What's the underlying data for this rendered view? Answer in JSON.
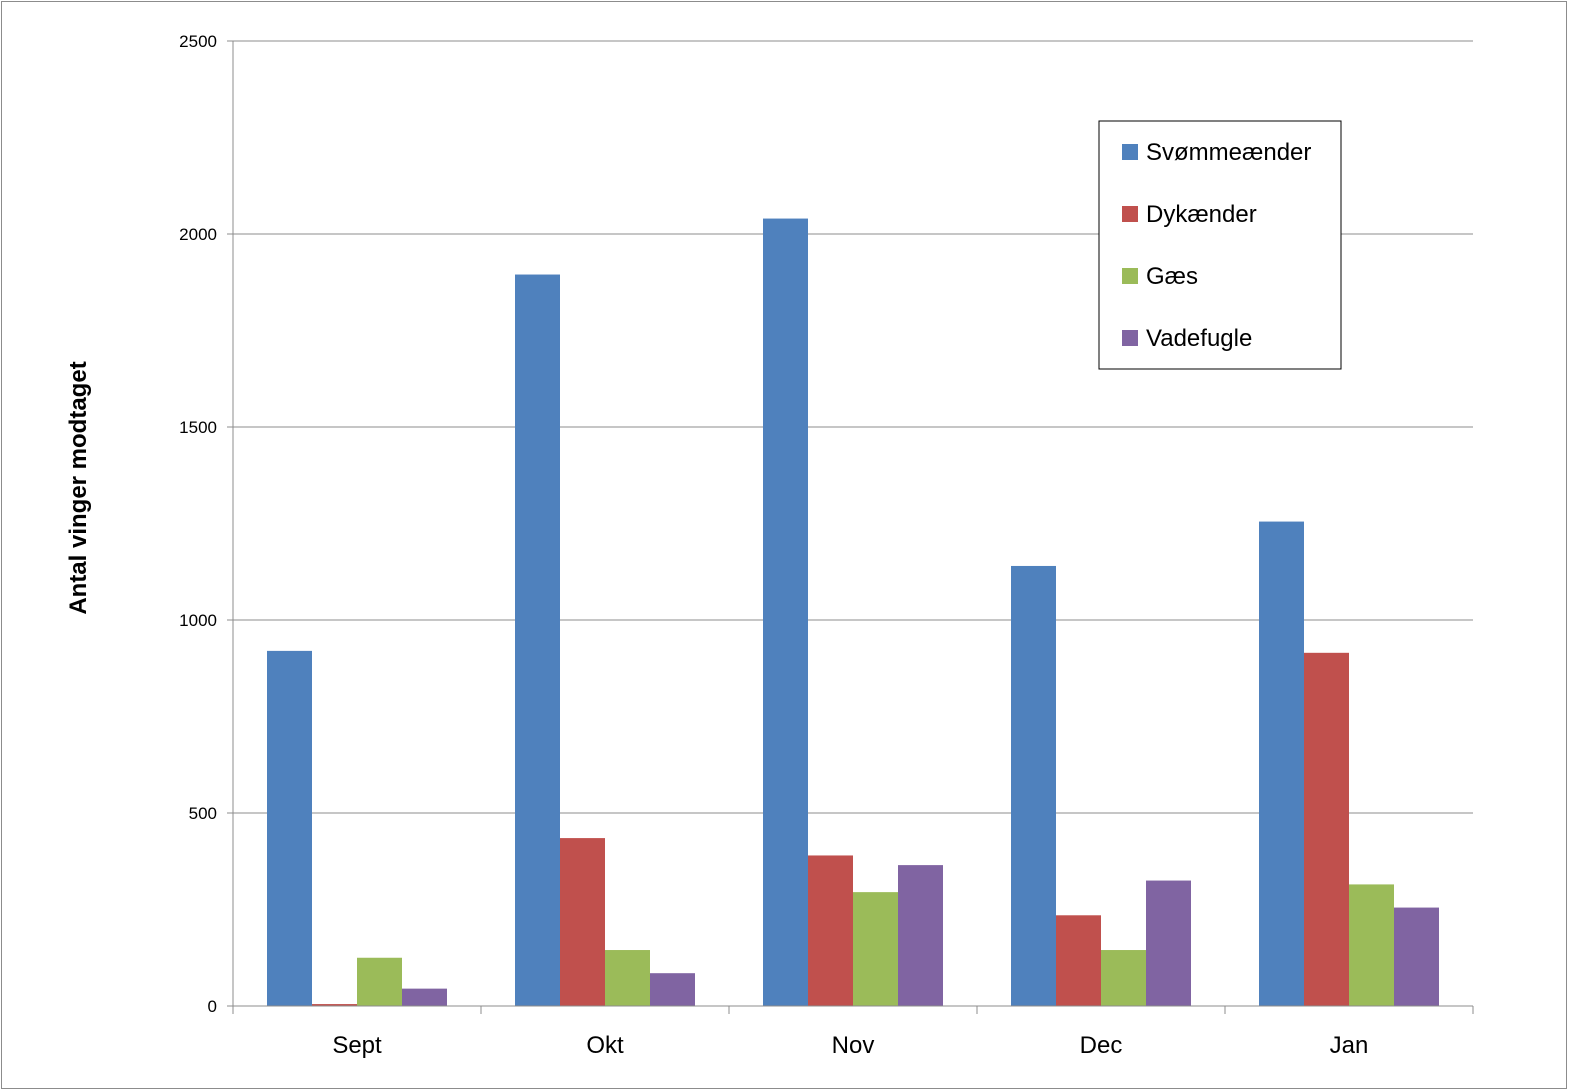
{
  "chart_data": {
    "type": "bar",
    "title": "",
    "xlabel": "",
    "ylabel": "Antal vinger modtaget",
    "categories": [
      "Sept",
      "Okt",
      "Nov",
      "Dec",
      "Jan"
    ],
    "ylim": [
      0,
      2500
    ],
    "yticks": [
      0,
      500,
      1000,
      1500,
      2000,
      2500
    ],
    "grid": true,
    "legend_position": "top-right",
    "series": [
      {
        "name": "Svømmeænder",
        "color": "#4f81bd",
        "values": [
          920,
          1895,
          2040,
          1140,
          1255
        ]
      },
      {
        "name": "Dykænder",
        "color": "#c0504d",
        "values": [
          5,
          435,
          390,
          235,
          915
        ]
      },
      {
        "name": "Gæs",
        "color": "#9bbb59",
        "values": [
          125,
          145,
          295,
          145,
          315
        ]
      },
      {
        "name": "Vadefugle",
        "color": "#8064a2",
        "values": [
          45,
          85,
          365,
          325,
          255
        ]
      }
    ]
  }
}
